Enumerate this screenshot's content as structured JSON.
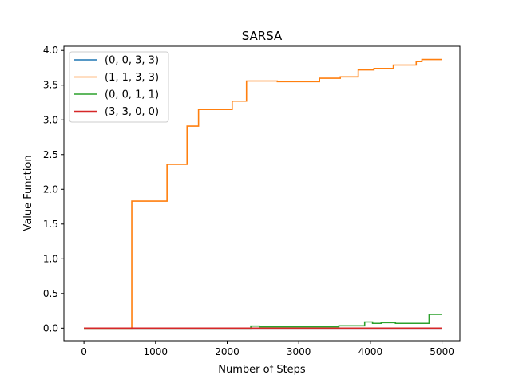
{
  "chart_data": {
    "type": "line",
    "title": "SARSA",
    "xlabel": "Number of Steps",
    "ylabel": "Value Function",
    "xlim": [
      -280,
      5250
    ],
    "ylim": [
      -0.18,
      4.06
    ],
    "xticks": [
      0,
      1000,
      2000,
      3000,
      4000,
      5000
    ],
    "xtick_labels": [
      "0",
      "1000",
      "2000",
      "3000",
      "4000",
      "5000"
    ],
    "yticks": [
      0.0,
      0.5,
      1.0,
      1.5,
      2.0,
      2.5,
      3.0,
      3.5,
      4.0
    ],
    "ytick_labels": [
      "0.0",
      "0.5",
      "1.0",
      "1.5",
      "2.0",
      "2.5",
      "3.0",
      "3.5",
      "4.0"
    ],
    "grid": false,
    "legend_position": "upper-left",
    "series": [
      {
        "name": "(0, 0, 3, 3)",
        "color": "#1f77b4",
        "step": true,
        "points": [
          [
            0,
            0.0
          ],
          [
            5000,
            0.0
          ]
        ]
      },
      {
        "name": "(1, 1, 3, 3)",
        "color": "#ff7f0e",
        "step": true,
        "points": [
          [
            0,
            0.0
          ],
          [
            668,
            0.0
          ],
          [
            668,
            1.83
          ],
          [
            1160,
            1.83
          ],
          [
            1160,
            2.36
          ],
          [
            1440,
            2.36
          ],
          [
            1440,
            2.91
          ],
          [
            1600,
            2.91
          ],
          [
            1600,
            3.15
          ],
          [
            2070,
            3.15
          ],
          [
            2070,
            3.27
          ],
          [
            2270,
            3.27
          ],
          [
            2270,
            3.56
          ],
          [
            2700,
            3.56
          ],
          [
            2700,
            3.55
          ],
          [
            3150,
            3.55
          ],
          [
            3290,
            3.6
          ],
          [
            3580,
            3.62
          ],
          [
            3830,
            3.72
          ],
          [
            4050,
            3.74
          ],
          [
            4320,
            3.79
          ],
          [
            4640,
            3.84
          ],
          [
            4720,
            3.87
          ],
          [
            5000,
            3.87
          ]
        ]
      },
      {
        "name": "(0, 0, 1, 1)",
        "color": "#2ca02c",
        "step": true,
        "points": [
          [
            0,
            0.0
          ],
          [
            2330,
            0.0
          ],
          [
            2330,
            0.03
          ],
          [
            2450,
            0.02
          ],
          [
            3560,
            0.02
          ],
          [
            3560,
            0.035
          ],
          [
            3920,
            0.035
          ],
          [
            3920,
            0.09
          ],
          [
            4030,
            0.07
          ],
          [
            4150,
            0.08
          ],
          [
            4350,
            0.07
          ],
          [
            4820,
            0.07
          ],
          [
            4820,
            0.2
          ],
          [
            5000,
            0.2
          ]
        ]
      },
      {
        "name": "(3, 3, 0, 0)",
        "color": "#d62728",
        "step": true,
        "points": [
          [
            0,
            0.0
          ],
          [
            5000,
            0.0
          ]
        ]
      }
    ]
  }
}
